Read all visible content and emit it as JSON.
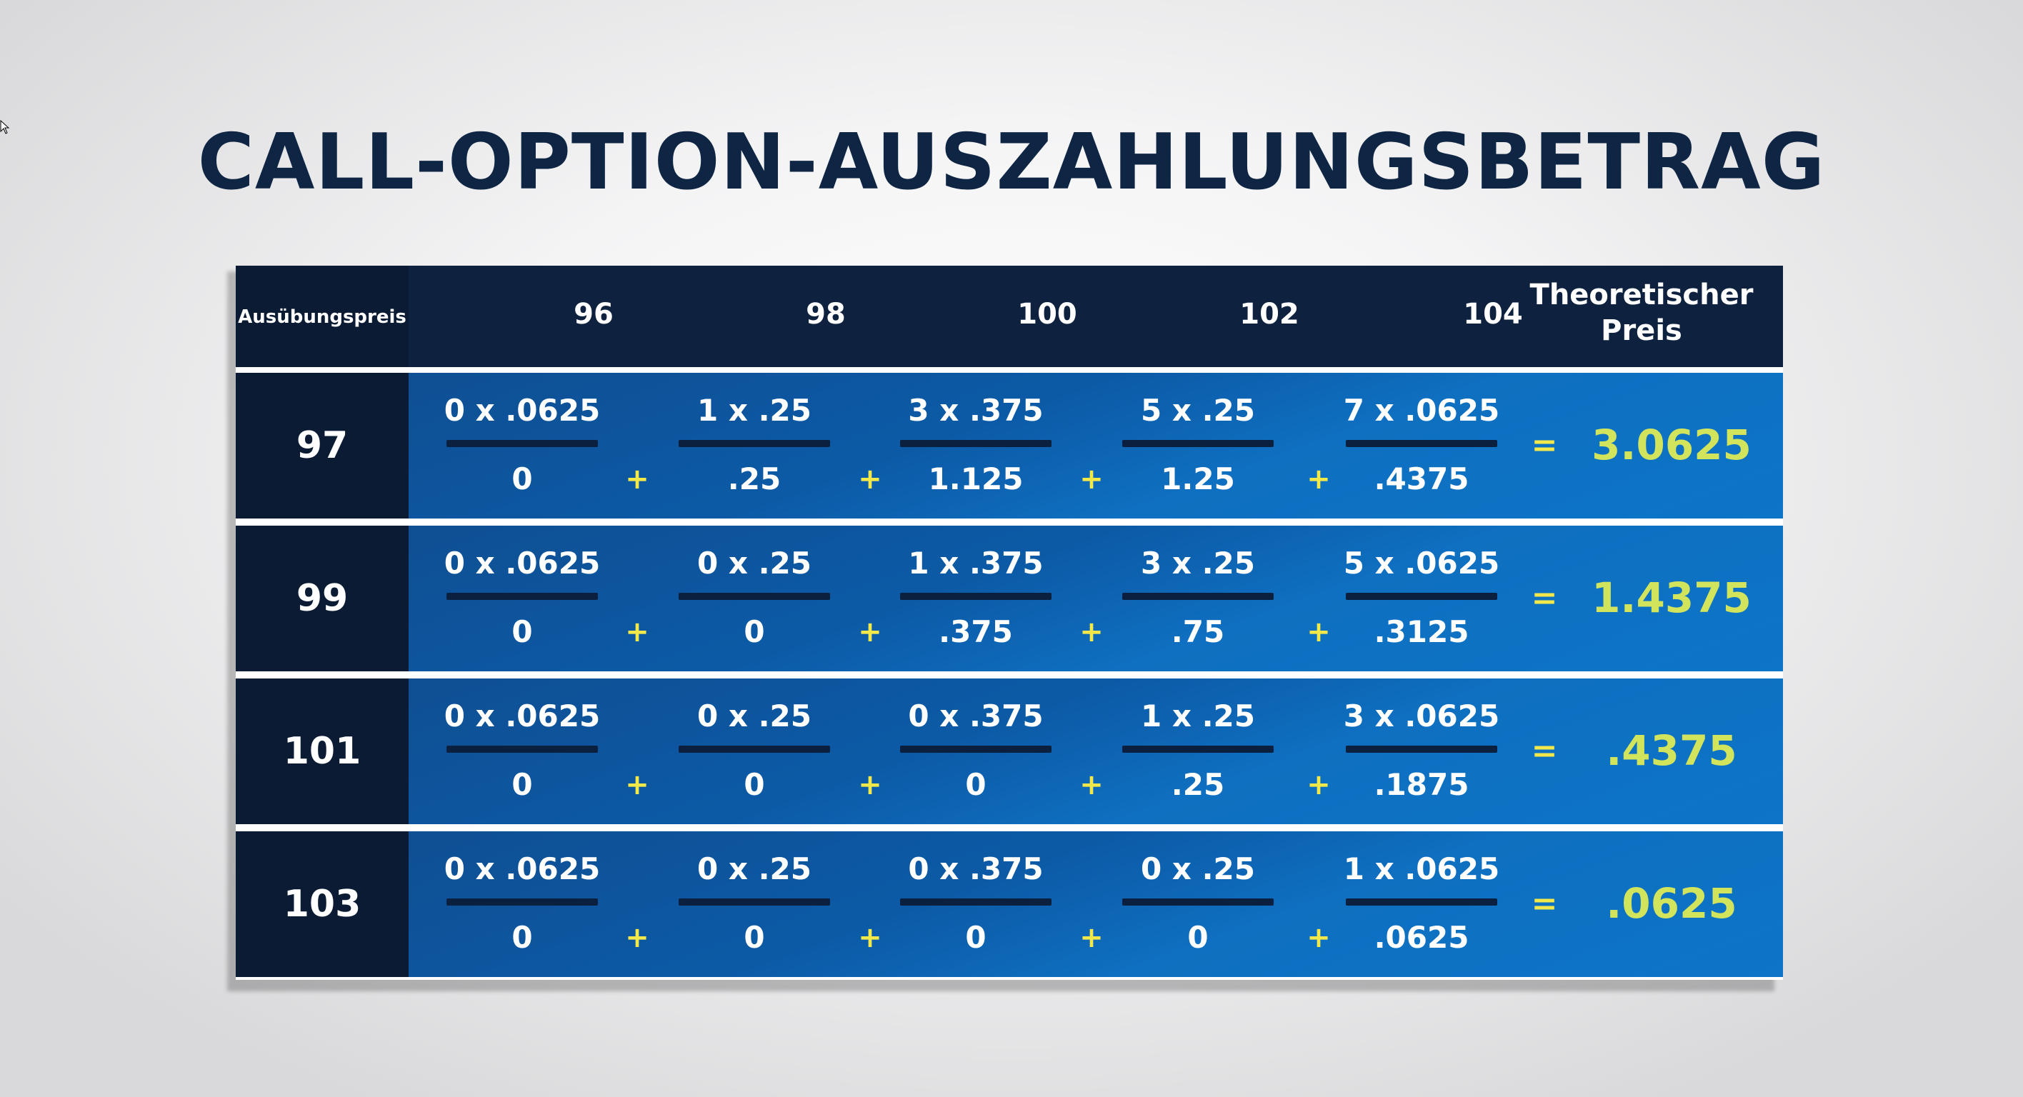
{
  "title": "CALL-OPTION-AUSZAHLUNGSBETRAG",
  "header": {
    "row_label": "Ausübungspreis",
    "strikes": [
      "96",
      "98",
      "100",
      "102",
      "104"
    ],
    "price_label_line1": "Theoretischer",
    "price_label_line2": "Preis"
  },
  "operators": {
    "plus": "+",
    "equals": "="
  },
  "rows": [
    {
      "strike": "97",
      "terms": [
        {
          "expr": "0 x .0625",
          "result": "0"
        },
        {
          "expr": "1 x .25",
          "result": ".25"
        },
        {
          "expr": "3 x .375",
          "result": "1.125"
        },
        {
          "expr": "5 x .25",
          "result": "1.25"
        },
        {
          "expr": "7 x .0625",
          "result": ".4375"
        }
      ],
      "price": "3.0625"
    },
    {
      "strike": "99",
      "terms": [
        {
          "expr": "0 x .0625",
          "result": "0"
        },
        {
          "expr": "0 x .25",
          "result": "0"
        },
        {
          "expr": "1 x .375",
          "result": ".375"
        },
        {
          "expr": "3 x .25",
          "result": ".75"
        },
        {
          "expr": "5 x .0625",
          "result": ".3125"
        }
      ],
      "price": "1.4375"
    },
    {
      "strike": "101",
      "terms": [
        {
          "expr": "0 x .0625",
          "result": "0"
        },
        {
          "expr": "0 x .25",
          "result": "0"
        },
        {
          "expr": "0 x .375",
          "result": "0"
        },
        {
          "expr": "1 x .25",
          "result": ".25"
        },
        {
          "expr": "3 x .0625",
          "result": ".1875"
        }
      ],
      "price": ".4375"
    },
    {
      "strike": "103",
      "terms": [
        {
          "expr": "0 x .0625",
          "result": "0"
        },
        {
          "expr": "0 x .25",
          "result": "0"
        },
        {
          "expr": "0 x .375",
          "result": "0"
        },
        {
          "expr": "0 x .25",
          "result": "0"
        },
        {
          "expr": "1 x .0625",
          "result": ".0625"
        }
      ],
      "price": ".0625"
    }
  ],
  "colors": {
    "title": "#0f2544",
    "header_bg": "#0e223f",
    "row_label_bg": "#0a1b33",
    "row_body": "#0c5aa6",
    "operator": "#f2e84a",
    "price_value": "#d2e35c"
  },
  "icons": {
    "cursor": "mouse-pointer-icon"
  }
}
